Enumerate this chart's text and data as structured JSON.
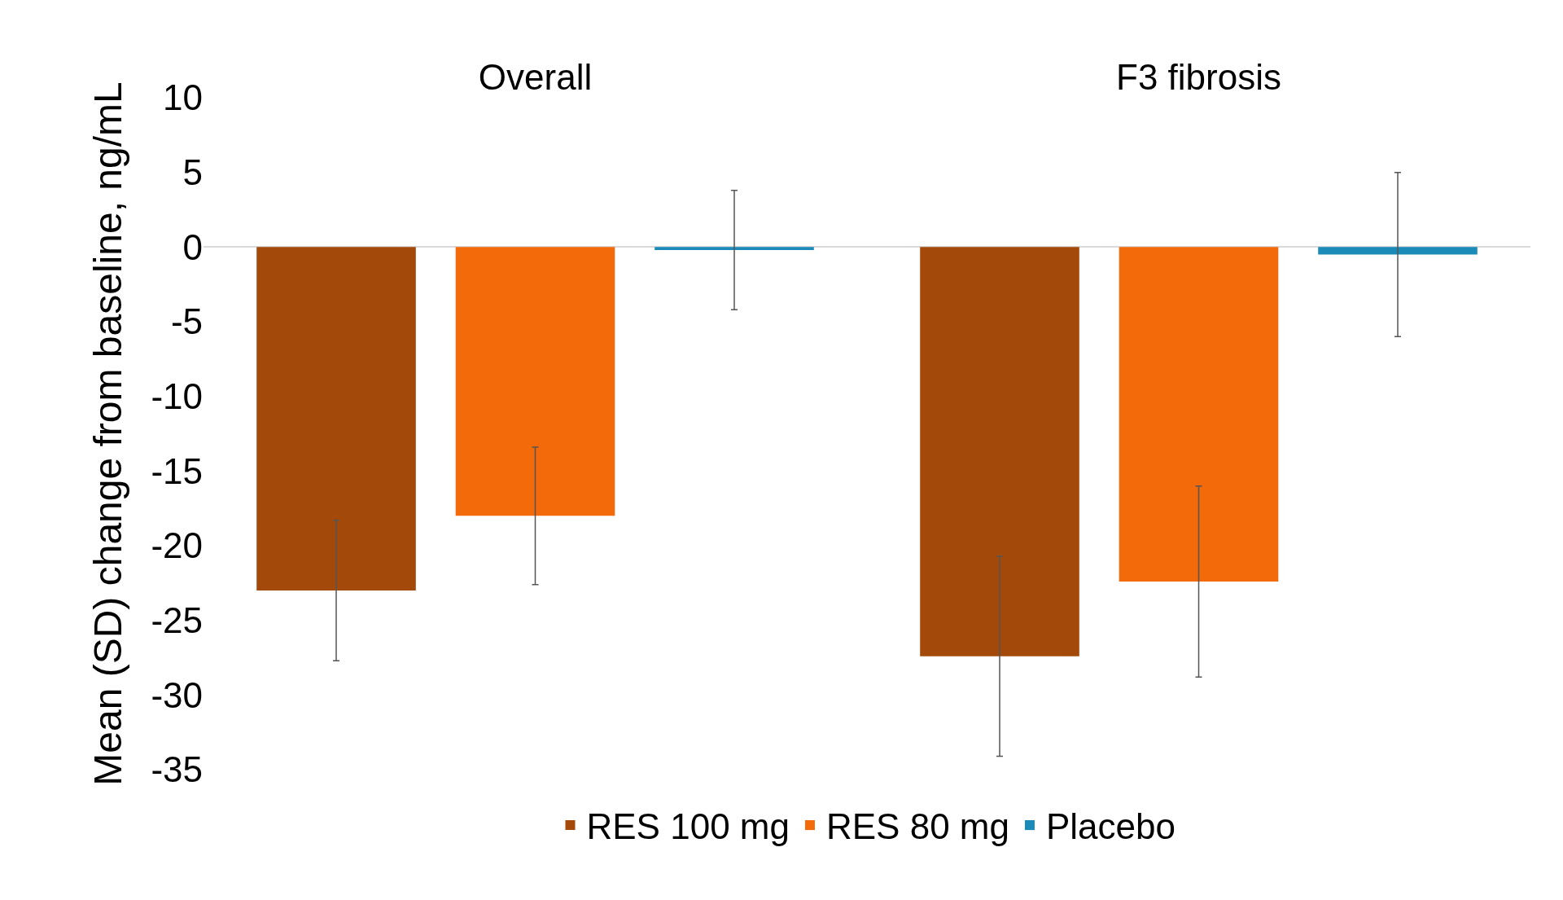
{
  "chart_data": {
    "type": "bar",
    "ylabel": "Mean (SD) change from baseline, ng/mL",
    "categories": [
      "Overall",
      "F3 fibrosis"
    ],
    "series": [
      {
        "name": "RES 100 mg",
        "color": "#a34a0a",
        "values": [
          -23.0,
          -27.4
        ],
        "errors": [
          4.7,
          6.7
        ]
      },
      {
        "name": "RES 80 mg",
        "color": "#f26a0a",
        "values": [
          -18.0,
          -22.4
        ],
        "errors": [
          4.6,
          6.4
        ]
      },
      {
        "name": "Placebo",
        "color": "#1a8ab8",
        "values": [
          -0.2,
          -0.5
        ],
        "errors": [
          4.0,
          5.5
        ]
      }
    ],
    "ylim": [
      -35,
      10
    ],
    "yticks": [
      -35,
      -30,
      -25,
      -20,
      -15,
      -10,
      -5,
      0,
      5,
      10
    ],
    "legend": "bottom"
  }
}
